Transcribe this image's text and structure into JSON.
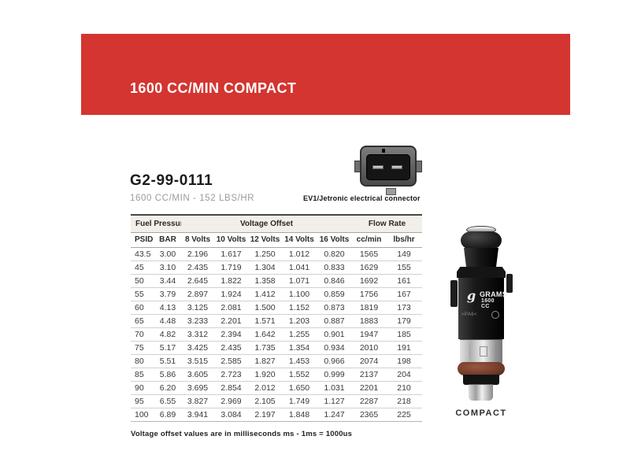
{
  "header": {
    "title": "1600 CC/MIN COMPACT",
    "accent_color": "#d43530"
  },
  "product": {
    "part_number": "G2-99-0111",
    "subtitle": "1600 CC/MIN - 152 LBS/HR",
    "connector_caption": "EV1/Jetronic electrical connector"
  },
  "table": {
    "group_headers": [
      {
        "label": "Fuel Pressure",
        "span": 2
      },
      {
        "label": "Voltage Offset",
        "span": 5
      },
      {
        "label": "Flow Rate",
        "span": 2
      }
    ],
    "columns": [
      "PSID",
      "BAR",
      "8 Volts",
      "10 Volts",
      "12 Volts",
      "14 Volts",
      "16 Volts",
      "cc/min",
      "lbs/hr"
    ],
    "rows": [
      [
        "43.5",
        "3.00",
        "2.196",
        "1.617",
        "1.250",
        "1.012",
        "0.820",
        "1565",
        "149"
      ],
      [
        "45",
        "3.10",
        "2.435",
        "1.719",
        "1.304",
        "1.041",
        "0.833",
        "1629",
        "155"
      ],
      [
        "50",
        "3.44",
        "2.645",
        "1.822",
        "1.358",
        "1.071",
        "0.846",
        "1692",
        "161"
      ],
      [
        "55",
        "3.79",
        "2.897",
        "1.924",
        "1.412",
        "1.100",
        "0.859",
        "1756",
        "167"
      ],
      [
        "60",
        "4.13",
        "3.125",
        "2.081",
        "1.500",
        "1.152",
        "0.873",
        "1819",
        "173"
      ],
      [
        "65",
        "4.48",
        "3.233",
        "2.201",
        "1.571",
        "1.203",
        "0.887",
        "1883",
        "179"
      ],
      [
        "70",
        "4.82",
        "3.312",
        "2.394",
        "1.642",
        "1.255",
        "0.901",
        "1947",
        "185"
      ],
      [
        "75",
        "5.17",
        "3.425",
        "2.435",
        "1.735",
        "1.354",
        "0.934",
        "2010",
        "191"
      ],
      [
        "80",
        "5.51",
        "3.515",
        "2.585",
        "1.827",
        "1.453",
        "0.966",
        "2074",
        "198"
      ],
      [
        "85",
        "5.86",
        "3.605",
        "2.723",
        "1.920",
        "1.552",
        "0.999",
        "2137",
        "204"
      ],
      [
        "90",
        "6.20",
        "3.695",
        "2.854",
        "2.012",
        "1.650",
        "1.031",
        "2201",
        "210"
      ],
      [
        "95",
        "6.55",
        "3.827",
        "2.969",
        "2.105",
        "1.749",
        "1.127",
        "2287",
        "218"
      ],
      [
        "100",
        "6.89",
        "3.941",
        "3.084",
        "2.197",
        "1.848",
        "1.247",
        "2365",
        "225"
      ]
    ]
  },
  "footnote": "Voltage offset values are in milliseconds ms - 1ms = 1000us",
  "injector": {
    "logo_glyph": "g",
    "brand": "GRAMS",
    "model": "1600 CC",
    "marking": ">PA6<",
    "label": "COMPACT"
  }
}
